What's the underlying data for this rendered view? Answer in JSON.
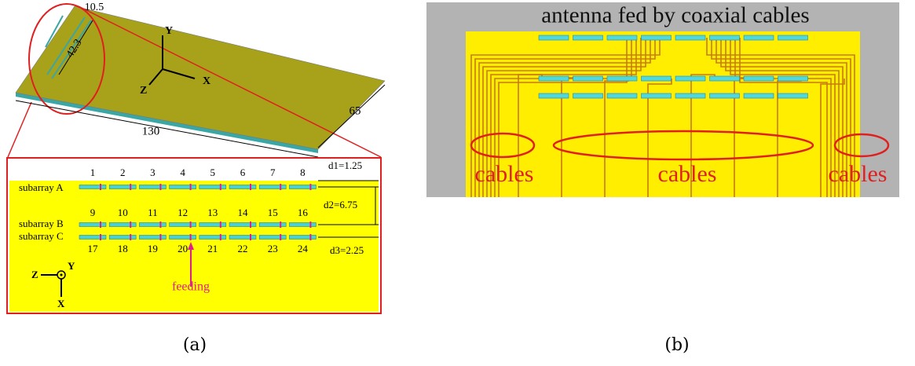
{
  "panel_a": {
    "dimensions": {
      "top_width": "10.5",
      "dipole_length": "42.3",
      "length": "130",
      "width": "65"
    },
    "axes_3d": {
      "y": "Y",
      "x": "X",
      "z": "Z"
    },
    "subarrays": [
      {
        "label": "subarray A",
        "elements": [
          "1",
          "2",
          "3",
          "4",
          "5",
          "6",
          "7",
          "8"
        ]
      },
      {
        "label": "subarray B",
        "elements": [
          "9",
          "10",
          "11",
          "12",
          "13",
          "14",
          "15",
          "16"
        ]
      },
      {
        "label": "subarray C",
        "elements": [
          "17",
          "18",
          "19",
          "20",
          "21",
          "22",
          "23",
          "24"
        ]
      }
    ],
    "spacings": [
      "d1=1.25",
      "d2=6.75",
      "d3=2.25"
    ],
    "axes_2d": {
      "z": "Z",
      "y": "Y",
      "x": "X"
    },
    "feeding": "feeding",
    "caption": "(a)"
  },
  "panel_b": {
    "title": "antenna fed by coaxial cables",
    "cable_labels": [
      "cables",
      "cables",
      "cables"
    ],
    "caption": "(b)"
  }
}
